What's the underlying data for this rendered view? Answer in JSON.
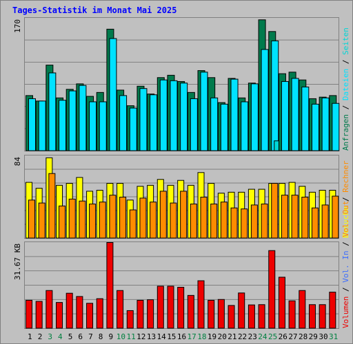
{
  "title": "Tages-Statistik im Monat Mai 2025",
  "colors": {
    "background": "#C0C0C0",
    "border": "#808080",
    "title": "#0000FF",
    "gridline": "#808080",
    "anfragen": "#007A4C",
    "dateien": "#00E2FF",
    "seiten": "#00D6D6",
    "besuche": "#FFFF00",
    "rechner": "#FF8C00",
    "vol_in": "#3B6CFF",
    "vol_out": "#FF8C00",
    "volumen": "#EE0000",
    "weekend_day": "#008040",
    "weekday": "#000000"
  },
  "chart_data": [
    {
      "type": "bar",
      "name": "hits",
      "ylabel_max": "170",
      "legend": [
        {
          "label": "Anfragen",
          "color": "#007A4C"
        },
        {
          "label": "Dateien",
          "color": "#00E2FF"
        },
        {
          "label": "Seiten",
          "color": "#00D6D6"
        }
      ],
      "ylim": [
        0,
        170
      ],
      "categories": [
        "1",
        "2",
        "3",
        "4",
        "5",
        "6",
        "7",
        "8",
        "9",
        "10",
        "11",
        "12",
        "13",
        "14",
        "15",
        "16",
        "17",
        "18",
        "19",
        "20",
        "21",
        "22",
        "23",
        "24",
        "25",
        "26",
        "27",
        "28",
        "29",
        "30",
        "31"
      ],
      "series": [
        {
          "name": "Anfragen",
          "values": [
            71,
            64,
            110,
            68,
            79,
            86,
            70,
            75,
            156,
            78,
            58,
            83,
            73,
            94,
            97,
            89,
            75,
            103,
            94,
            62,
            93,
            68,
            87,
            168,
            153,
            99,
            101,
            91,
            67,
            69,
            71
          ]
        },
        {
          "name": "Dateien",
          "values": [
            67,
            64,
            100,
            65,
            77,
            84,
            63,
            63,
            144,
            71,
            55,
            80,
            72,
            91,
            90,
            87,
            67,
            101,
            68,
            60,
            92,
            63,
            86,
            130,
            141,
            89,
            93,
            82,
            60,
            68,
            61
          ]
        },
        {
          "name": "Seiten",
          "values": [
            0,
            0,
            0,
            0,
            0,
            0,
            0,
            0,
            0,
            0,
            0,
            0,
            0,
            0,
            0,
            0,
            0,
            0,
            0,
            0,
            0,
            0,
            0,
            0,
            13,
            0,
            0,
            0,
            0,
            0,
            0
          ]
        }
      ]
    },
    {
      "type": "bar",
      "name": "visits",
      "ylabel_max": "84",
      "legend": [
        {
          "label": "Besuche",
          "color": "#FFFF00"
        },
        {
          "label": "Rechner",
          "color": "#FF8C00"
        }
      ],
      "ylim": [
        0,
        84
      ],
      "categories": [
        "1",
        "2",
        "3",
        "4",
        "5",
        "6",
        "7",
        "8",
        "9",
        "10",
        "11",
        "12",
        "13",
        "14",
        "15",
        "16",
        "17",
        "18",
        "19",
        "20",
        "21",
        "22",
        "23",
        "24",
        "25",
        "26",
        "27",
        "28",
        "29",
        "30",
        "31"
      ],
      "series": [
        {
          "name": "Besuche",
          "values": [
            57,
            51,
            82,
            54,
            56,
            62,
            48,
            49,
            56,
            56,
            39,
            53,
            54,
            60,
            54,
            59,
            54,
            67,
            56,
            46,
            47,
            47,
            50,
            50,
            56,
            56,
            57,
            53,
            47,
            49,
            49
          ]
        },
        {
          "name": "Rechner",
          "values": [
            39,
            36,
            66,
            33,
            40,
            38,
            35,
            37,
            44,
            42,
            29,
            41,
            37,
            48,
            36,
            48,
            35,
            42,
            35,
            37,
            31,
            30,
            34,
            35,
            56,
            44,
            44,
            42,
            31,
            34,
            43
          ]
        }
      ]
    },
    {
      "type": "bar",
      "name": "volume",
      "ylabel_max": "31.67 KB",
      "legend": [
        {
          "label": "Volumen",
          "color": "#EE0000"
        },
        {
          "label": "Vol. In",
          "color": "#3B6CFF"
        },
        {
          "label": "Vol. Out",
          "color": "#FF8C00"
        }
      ],
      "ylim": [
        0,
        31.67
      ],
      "categories": [
        "1",
        "2",
        "3",
        "4",
        "5",
        "6",
        "7",
        "8",
        "9",
        "10",
        "11",
        "12",
        "13",
        "14",
        "15",
        "16",
        "17",
        "18",
        "19",
        "20",
        "21",
        "22",
        "23",
        "24",
        "25",
        "26",
        "27",
        "28",
        "29",
        "30",
        "31"
      ],
      "series": [
        {
          "name": "Volumen",
          "values": [
            10.4,
            10.0,
            14.0,
            9.6,
            13.0,
            11.8,
            9.3,
            11.0,
            32.0,
            14.0,
            6.6,
            10.4,
            10.6,
            15.6,
            15.6,
            15.2,
            12.2,
            17.6,
            10.4,
            10.7,
            8.5,
            13.1,
            8.7,
            8.8,
            28.7,
            18.9,
            10.2,
            14.0,
            8.8,
            8.8,
            13.4
          ]
        }
      ]
    }
  ],
  "weekend_days": [
    "3",
    "4",
    "10",
    "11",
    "17",
    "18",
    "24",
    "25",
    "31"
  ]
}
